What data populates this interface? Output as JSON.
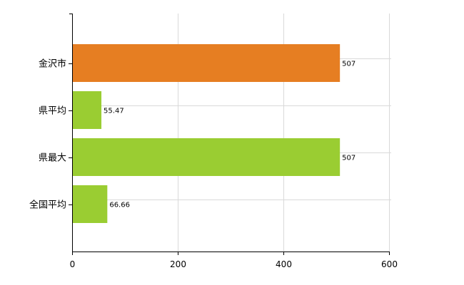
{
  "chart_data": {
    "type": "bar",
    "orientation": "horizontal",
    "categories": [
      "金沢市",
      "県平均",
      "県最大",
      "全国平均"
    ],
    "values": [
      507,
      55.47,
      507,
      66.66
    ],
    "value_labels": [
      "507",
      "55.47",
      "507",
      "66.66"
    ],
    "bar_colors": [
      "#e67e22",
      "#9acd32",
      "#9acd32",
      "#9acd32"
    ],
    "xlim": [
      0,
      600
    ],
    "xticks": [
      0,
      200,
      400,
      600
    ],
    "xtick_labels": [
      "0",
      "200",
      "400",
      "600"
    ],
    "grid": true,
    "gridline_color": "#d9d9d9",
    "axis_color": "#000000",
    "legend": "none"
  }
}
